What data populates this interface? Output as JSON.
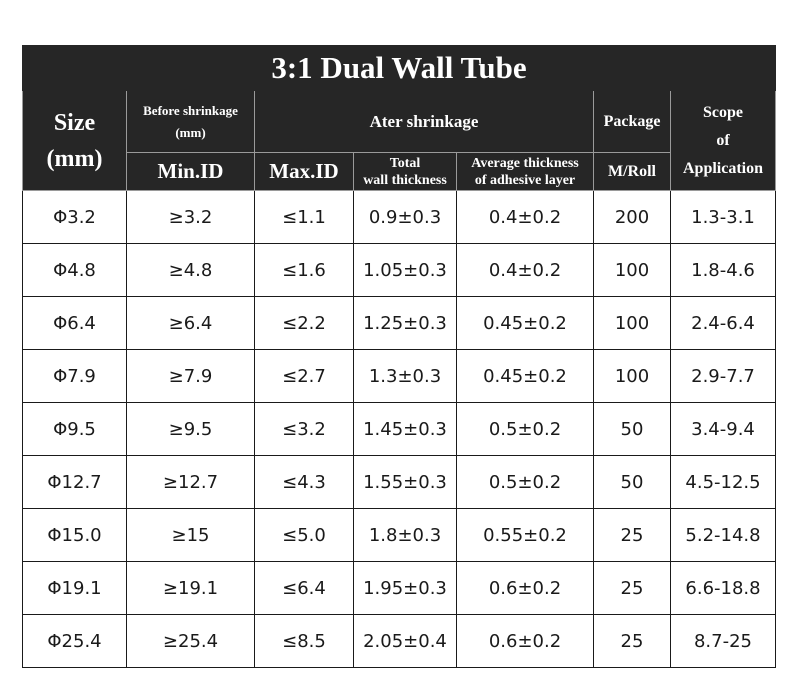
{
  "title": "3:1 Dual Wall Tube",
  "headers": {
    "size": "Size",
    "size_unit": "(mm)",
    "before": "Before shrinkage",
    "before_unit": "(mm)",
    "after": "Ater shrinkage",
    "package": "Package",
    "package_unit": "M/Roll",
    "scope_1": "Scope",
    "scope_2": "of",
    "scope_3": "Application",
    "min_id": "Min.ID",
    "max_id": "Max.ID",
    "total_1": "Total",
    "total_2": "wall thickness",
    "avg_1": "Average thickness",
    "avg_2": "of adhesive layer"
  },
  "rows": [
    [
      "Φ3.2",
      "≥3.2",
      "≤1.1",
      "0.9±0.3",
      "0.4±0.2",
      "200",
      "1.3-3.1"
    ],
    [
      "Φ4.8",
      "≥4.8",
      "≤1.6",
      "1.05±0.3",
      "0.4±0.2",
      "100",
      "1.8-4.6"
    ],
    [
      "Φ6.4",
      "≥6.4",
      "≤2.2",
      "1.25±0.3",
      "0.45±0.2",
      "100",
      "2.4-6.4"
    ],
    [
      "Φ7.9",
      "≥7.9",
      "≤2.7",
      "1.3±0.3",
      "0.45±0.2",
      "100",
      "2.9-7.7"
    ],
    [
      "Φ9.5",
      "≥9.5",
      "≤3.2",
      "1.45±0.3",
      "0.5±0.2",
      "50",
      "3.4-9.4"
    ],
    [
      "Φ12.7",
      "≥12.7",
      "≤4.3",
      "1.55±0.3",
      "0.5±0.2",
      "50",
      "4.5-12.5"
    ],
    [
      "Φ15.0",
      "≥15",
      "≤5.0",
      "1.8±0.3",
      "0.55±0.2",
      "25",
      "5.2-14.8"
    ],
    [
      "Φ19.1",
      "≥19.1",
      "≤6.4",
      "1.95±0.3",
      "0.6±0.2",
      "25",
      "6.6-18.8"
    ],
    [
      "Φ25.4",
      "≥25.4",
      "≤8.5",
      "2.05±0.4",
      "0.6±0.2",
      "25",
      "8.7-25"
    ]
  ]
}
